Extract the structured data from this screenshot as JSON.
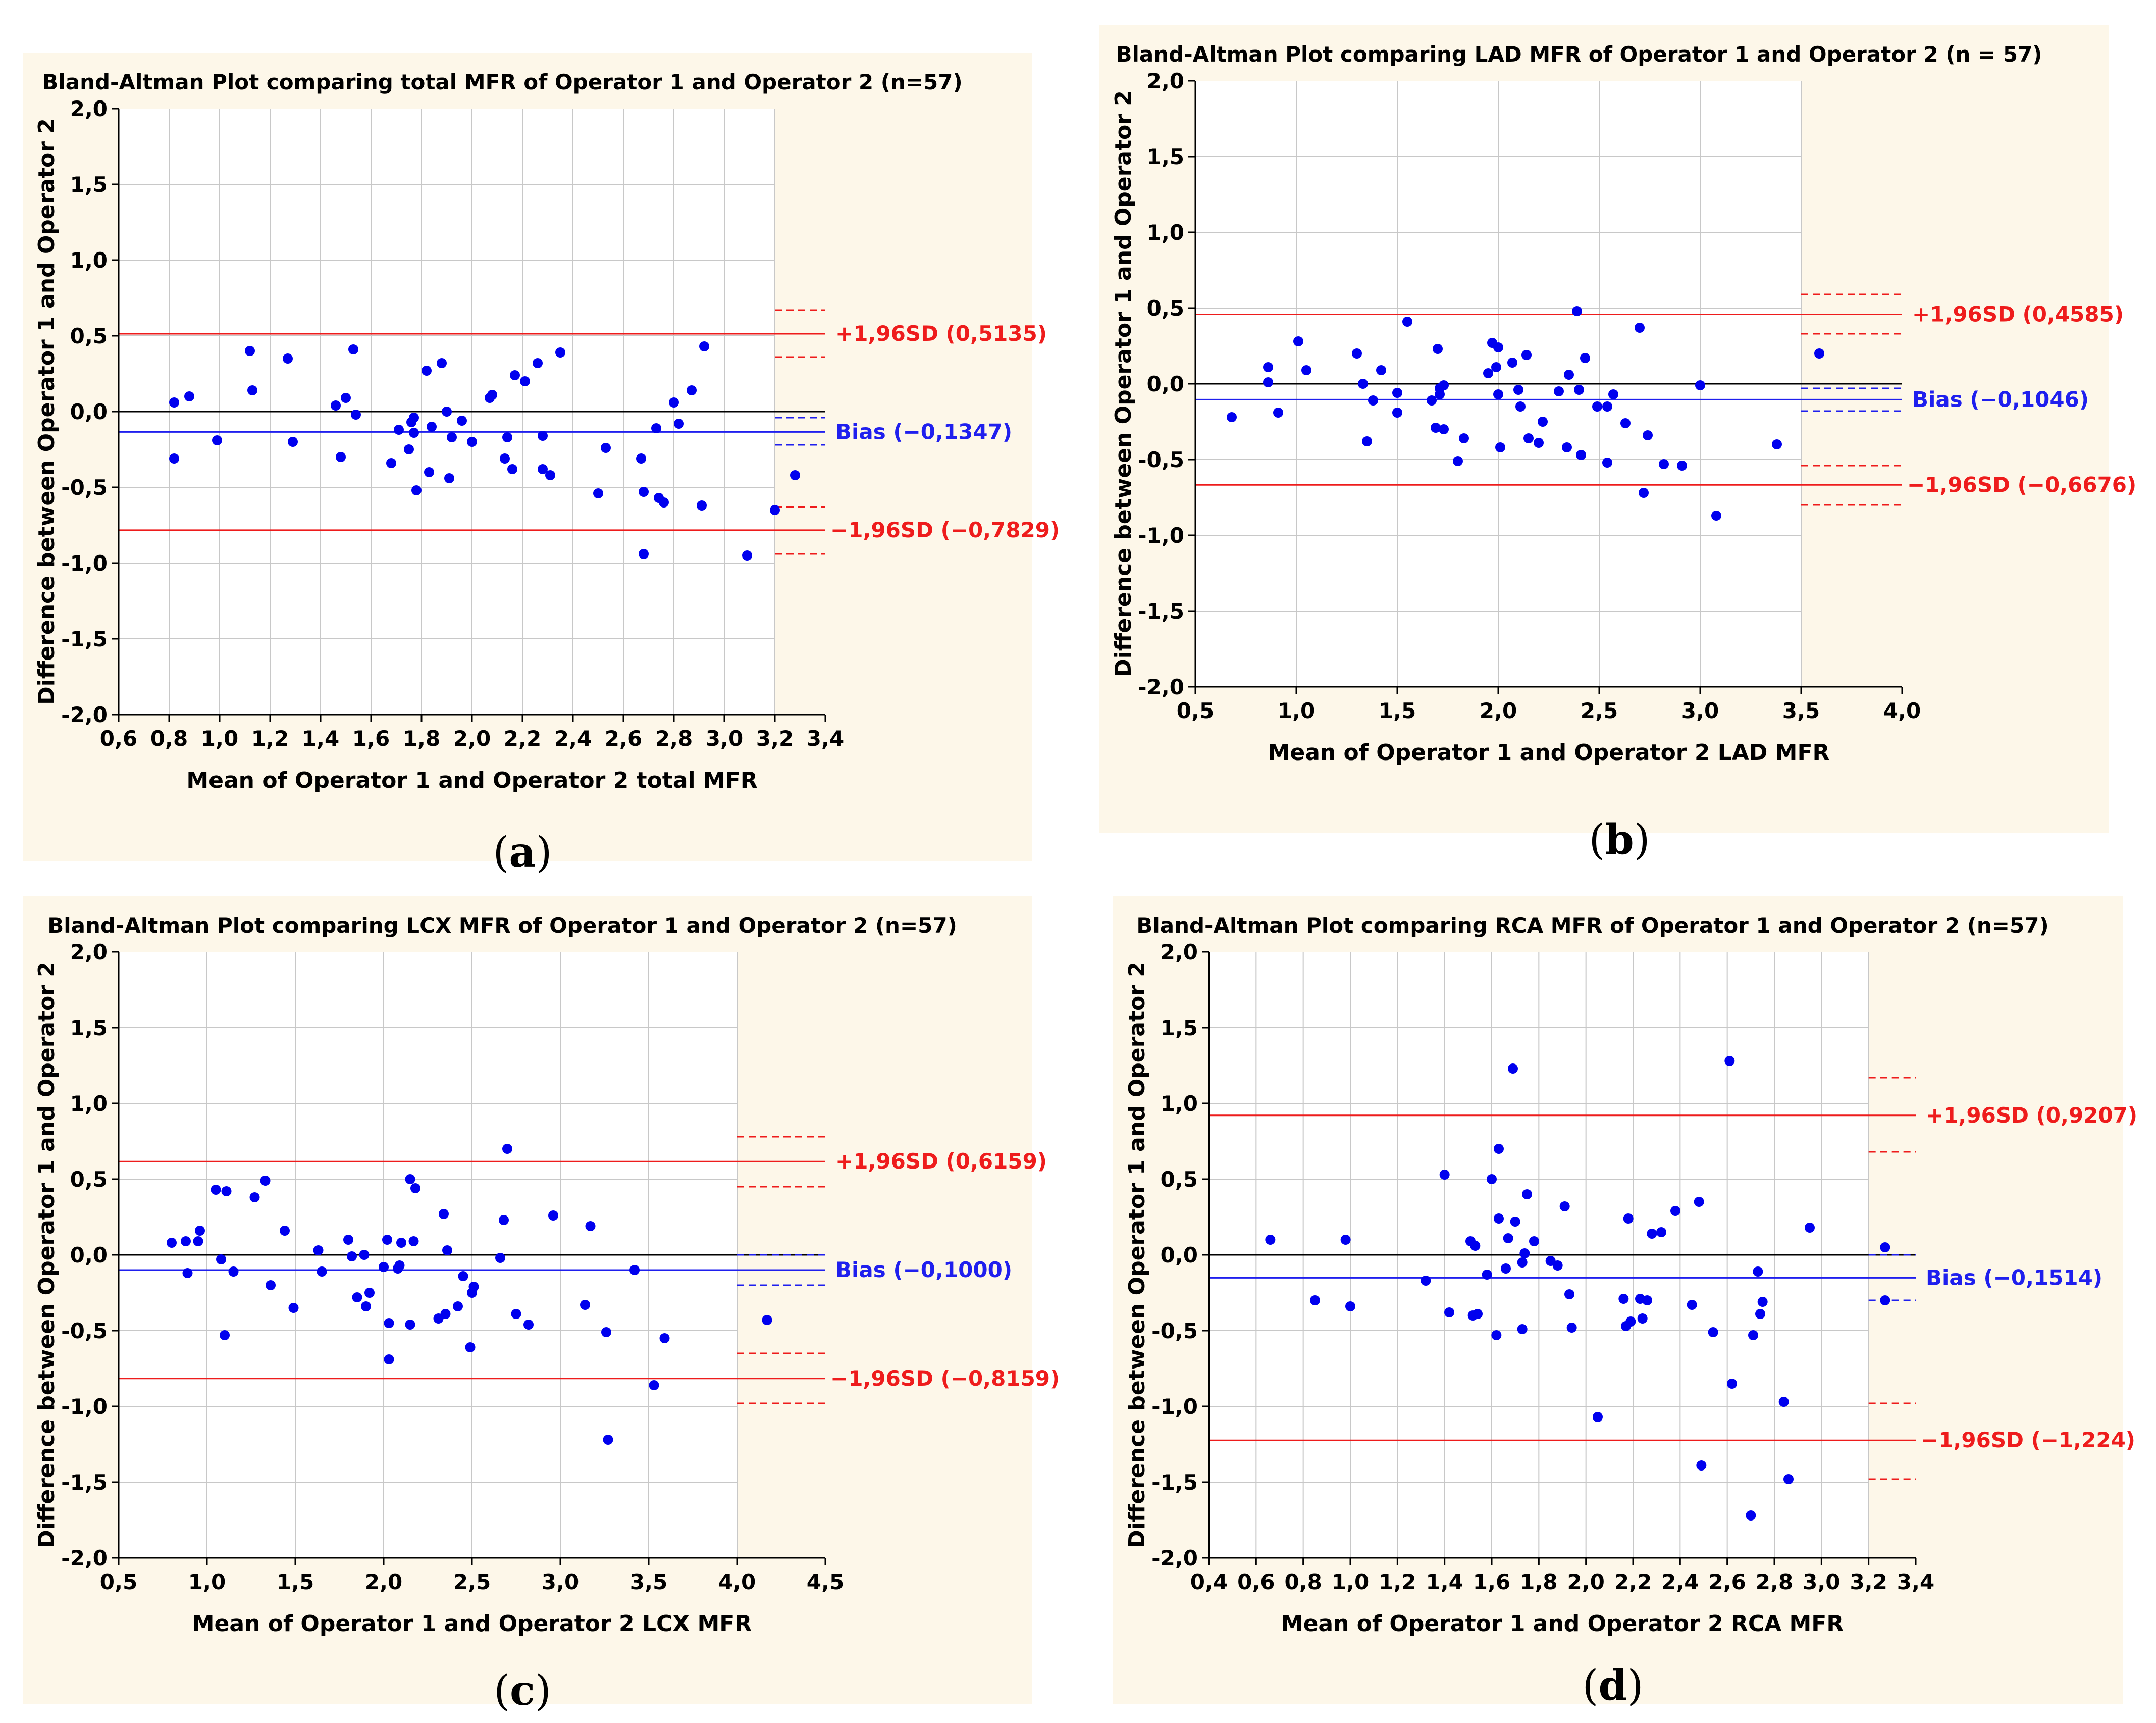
{
  "colors": {
    "panel_bg": "#fdf7e9",
    "plot_bg": "#ffffff",
    "grid": "#c8c8c8",
    "axis": "#000000",
    "point": "#0000ee",
    "upper_limit": "#ee1c1c",
    "lower_limit": "#ee1c1c",
    "bias_line": "#1f1fee",
    "zero_line": "#000000"
  },
  "captions": [
    {
      "open": "(",
      "letter": "a",
      "close": ")"
    },
    {
      "open": "(",
      "letter": "b",
      "close": ")"
    },
    {
      "open": "(",
      "letter": "c",
      "close": ")"
    },
    {
      "open": "(",
      "letter": "d",
      "close": ")"
    }
  ],
  "chart_data": [
    {
      "type": "scatter",
      "title": "Bland-Altman Plot comparing total MFR of Operator 1 and Operator 2 (n=57)",
      "xlabel": "Mean of Operator 1 and Operator 2 total MFR",
      "ylabel": "Difference between Operator 1 and Operator 2",
      "xlim": [
        0.6,
        3.4
      ],
      "ylim": [
        -2.0,
        2.0
      ],
      "xticks": [
        0.6,
        0.8,
        1.0,
        1.2,
        1.4,
        1.6,
        1.8,
        2.0,
        2.2,
        2.4,
        2.6,
        2.8,
        3.0,
        3.2,
        3.4
      ],
      "xtick_labels": [
        "0,6",
        "0,8",
        "1,0",
        "1,2",
        "1,4",
        "1,6",
        "1,8",
        "2,0",
        "2,2",
        "2,4",
        "2,6",
        "2,8",
        "3,0",
        "3,2",
        "3,4"
      ],
      "yticks": [
        2.0,
        1.5,
        1.0,
        0.5,
        0.0,
        -0.5,
        -1.0,
        -1.5,
        -2.0
      ],
      "ytick_labels": [
        "2,0",
        "1,5",
        "1,0",
        "0,5",
        "0,0",
        "-0,5",
        "-1,0",
        "-1,5",
        "-2,0"
      ],
      "grid": true,
      "bias": -0.1347,
      "upper_loa": 0.5135,
      "lower_loa": -0.7829,
      "ci_x_start": 3.2,
      "upper_ci": [
        0.36,
        0.67
      ],
      "bias_ci": [
        -0.22,
        -0.04
      ],
      "lower_ci": [
        -0.94,
        -0.63
      ],
      "upper_label": "+1,96SD (0,5135)",
      "bias_label": "Bias (−0,1347)",
      "lower_label": "−1,96SD (−0,7829)",
      "points": [
        [
          0.82,
          0.06
        ],
        [
          0.82,
          -0.31
        ],
        [
          0.88,
          0.1
        ],
        [
          0.99,
          -0.19
        ],
        [
          1.12,
          0.4
        ],
        [
          1.13,
          0.14
        ],
        [
          1.27,
          0.35
        ],
        [
          1.29,
          -0.2
        ],
        [
          1.46,
          0.04
        ],
        [
          1.48,
          -0.3
        ],
        [
          1.5,
          0.09
        ],
        [
          1.53,
          0.41
        ],
        [
          1.54,
          -0.02
        ],
        [
          1.68,
          -0.34
        ],
        [
          1.71,
          -0.12
        ],
        [
          1.75,
          -0.25
        ],
        [
          1.76,
          -0.07
        ],
        [
          1.77,
          -0.04
        ],
        [
          1.77,
          -0.14
        ],
        [
          1.78,
          -0.52
        ],
        [
          1.82,
          0.27
        ],
        [
          1.83,
          -0.4
        ],
        [
          1.84,
          -0.1
        ],
        [
          1.88,
          0.32
        ],
        [
          1.9,
          0.0
        ],
        [
          1.91,
          -0.44
        ],
        [
          1.92,
          -0.17
        ],
        [
          1.96,
          -0.06
        ],
        [
          2.0,
          -0.2
        ],
        [
          2.07,
          0.09
        ],
        [
          2.08,
          0.11
        ],
        [
          2.13,
          -0.31
        ],
        [
          2.14,
          -0.17
        ],
        [
          2.16,
          -0.38
        ],
        [
          2.17,
          0.24
        ],
        [
          2.21,
          0.2
        ],
        [
          2.26,
          0.32
        ],
        [
          2.28,
          -0.16
        ],
        [
          2.28,
          -0.38
        ],
        [
          2.31,
          -0.42
        ],
        [
          2.35,
          0.39
        ],
        [
          2.5,
          -0.54
        ],
        [
          2.53,
          -0.24
        ],
        [
          2.67,
          -0.31
        ],
        [
          2.68,
          -0.53
        ],
        [
          2.68,
          -0.94
        ],
        [
          2.73,
          -0.11
        ],
        [
          2.74,
          -0.57
        ],
        [
          2.76,
          -0.6
        ],
        [
          2.8,
          0.06
        ],
        [
          2.82,
          -0.08
        ],
        [
          2.87,
          0.14
        ],
        [
          2.91,
          -0.62
        ],
        [
          2.92,
          0.43
        ],
        [
          3.09,
          -0.95
        ],
        [
          3.2,
          -0.65
        ],
        [
          3.28,
          -0.42
        ]
      ]
    },
    {
      "type": "scatter",
      "title": "Bland-Altman Plot comparing LAD MFR of Operator 1 and Operator 2 (n = 57)",
      "xlabel": "Mean of Operator 1 and Operator 2 LAD MFR",
      "ylabel": "Difference between Operator 1 and Operator 2",
      "xlim": [
        0.5,
        4.0
      ],
      "ylim": [
        -2.0,
        2.0
      ],
      "xticks": [
        0.5,
        1.0,
        1.5,
        2.0,
        2.5,
        3.0,
        3.5,
        4.0
      ],
      "xtick_labels": [
        "0,5",
        "1,0",
        "1,5",
        "2,0",
        "2,5",
        "3,0",
        "3,5",
        "4,0"
      ],
      "yticks": [
        2.0,
        1.5,
        1.0,
        0.5,
        0.0,
        -0.5,
        -1.0,
        -1.5,
        -2.0
      ],
      "ytick_labels": [
        "2,0",
        "1,5",
        "1,0",
        "0,5",
        "0,0",
        "-0,5",
        "-1,0",
        "-1,5",
        "-2,0"
      ],
      "grid": true,
      "bias": -0.1046,
      "upper_loa": 0.4585,
      "lower_loa": -0.6676,
      "ci_x_start": 3.5,
      "upper_ci": [
        0.33,
        0.59
      ],
      "bias_ci": [
        -0.18,
        -0.03
      ],
      "lower_ci": [
        -0.8,
        -0.54
      ],
      "upper_label": "+1,96SD (0,4585)",
      "bias_label": "Bias (−0,1046)",
      "lower_label": "−1,96SD (−0,6676)",
      "points": [
        [
          0.68,
          -0.22
        ],
        [
          0.86,
          0.11
        ],
        [
          0.86,
          0.01
        ],
        [
          0.91,
          -0.19
        ],
        [
          1.01,
          0.28
        ],
        [
          1.05,
          0.09
        ],
        [
          1.3,
          0.2
        ],
        [
          1.33,
          0.0
        ],
        [
          1.35,
          -0.38
        ],
        [
          1.38,
          -0.11
        ],
        [
          1.42,
          0.09
        ],
        [
          1.5,
          -0.06
        ],
        [
          1.5,
          -0.19
        ],
        [
          1.55,
          0.41
        ],
        [
          1.67,
          -0.11
        ],
        [
          1.7,
          0.23
        ],
        [
          1.69,
          -0.29
        ],
        [
          1.71,
          -0.03
        ],
        [
          1.71,
          -0.07
        ],
        [
          1.73,
          -0.3
        ],
        [
          1.73,
          -0.01
        ],
        [
          1.8,
          -0.51
        ],
        [
          1.83,
          -0.36
        ],
        [
          1.95,
          0.07
        ],
        [
          1.97,
          0.27
        ],
        [
          1.99,
          0.11
        ],
        [
          2.0,
          0.24
        ],
        [
          2.0,
          -0.07
        ],
        [
          2.01,
          -0.42
        ],
        [
          2.07,
          0.14
        ],
        [
          2.1,
          -0.04
        ],
        [
          2.11,
          -0.15
        ],
        [
          2.14,
          0.19
        ],
        [
          2.15,
          -0.36
        ],
        [
          2.2,
          -0.39
        ],
        [
          2.22,
          -0.25
        ],
        [
          2.3,
          -0.05
        ],
        [
          2.34,
          -0.42
        ],
        [
          2.35,
          0.06
        ],
        [
          2.39,
          0.48
        ],
        [
          2.4,
          -0.04
        ],
        [
          2.41,
          -0.47
        ],
        [
          2.43,
          0.17
        ],
        [
          2.49,
          -0.15
        ],
        [
          2.54,
          -0.15
        ],
        [
          2.54,
          -0.52
        ],
        [
          2.57,
          -0.07
        ],
        [
          2.63,
          -0.26
        ],
        [
          2.7,
          0.37
        ],
        [
          2.72,
          -0.72
        ],
        [
          2.74,
          -0.34
        ],
        [
          2.82,
          -0.53
        ],
        [
          2.91,
          -0.54
        ],
        [
          3.0,
          -0.01
        ],
        [
          3.08,
          -0.87
        ],
        [
          3.38,
          -0.4
        ],
        [
          3.59,
          0.2
        ]
      ]
    },
    {
      "type": "scatter",
      "title": "Bland-Altman Plot comparing LCX MFR of Operator 1 and Operator 2 (n=57)",
      "xlabel": "Mean of Operator 1 and Operator 2 LCX MFR",
      "ylabel": "Difference between Operator 1 and Operator 2",
      "xlim": [
        0.5,
        4.5
      ],
      "ylim": [
        -2.0,
        2.0
      ],
      "xticks": [
        0.5,
        1.0,
        1.5,
        2.0,
        2.5,
        3.0,
        3.5,
        4.0,
        4.5
      ],
      "xtick_labels": [
        "0,5",
        "1,0",
        "1,5",
        "2,0",
        "2,5",
        "3,0",
        "3,5",
        "4,0",
        "4,5"
      ],
      "yticks": [
        2.0,
        1.5,
        1.0,
        0.5,
        0.0,
        -0.5,
        -1.0,
        -1.5,
        -2.0
      ],
      "ytick_labels": [
        "2,0",
        "1,5",
        "1,0",
        "0,5",
        "0,0",
        "-0,5",
        "-1,0",
        "-1,5",
        "-2,0"
      ],
      "grid": true,
      "bias": -0.1,
      "upper_loa": 0.6159,
      "lower_loa": -0.8159,
      "ci_x_start": 4.0,
      "upper_ci": [
        0.45,
        0.78
      ],
      "bias_ci": [
        -0.2,
        -0.0
      ],
      "lower_ci": [
        -0.98,
        -0.65
      ],
      "upper_label": "+1,96SD (0,6159)",
      "bias_label": "Bias (−0,1000)",
      "lower_label": "−1,96SD (−0,8159)",
      "points": [
        [
          0.8,
          0.08
        ],
        [
          0.88,
          0.09
        ],
        [
          0.89,
          -0.12
        ],
        [
          0.95,
          0.09
        ],
        [
          0.96,
          0.16
        ],
        [
          1.05,
          0.43
        ],
        [
          1.08,
          -0.03
        ],
        [
          1.1,
          -0.53
        ],
        [
          1.11,
          0.42
        ],
        [
          1.15,
          -0.11
        ],
        [
          1.27,
          0.38
        ],
        [
          1.33,
          0.49
        ],
        [
          1.36,
          -0.2
        ],
        [
          1.44,
          0.16
        ],
        [
          1.49,
          -0.35
        ],
        [
          1.63,
          0.03
        ],
        [
          1.65,
          -0.11
        ],
        [
          1.8,
          0.1
        ],
        [
          1.82,
          -0.01
        ],
        [
          1.85,
          -0.28
        ],
        [
          1.89,
          0.0
        ],
        [
          1.9,
          -0.34
        ],
        [
          1.92,
          -0.25
        ],
        [
          2.0,
          -0.08
        ],
        [
          2.02,
          0.1
        ],
        [
          2.03,
          -0.45
        ],
        [
          2.03,
          -0.69
        ],
        [
          2.08,
          -0.09
        ],
        [
          2.09,
          -0.07
        ],
        [
          2.1,
          0.08
        ],
        [
          2.15,
          -0.46
        ],
        [
          2.15,
          0.5
        ],
        [
          2.17,
          0.09
        ],
        [
          2.18,
          0.44
        ],
        [
          2.31,
          -0.42
        ],
        [
          2.34,
          0.27
        ],
        [
          2.35,
          -0.39
        ],
        [
          2.36,
          0.03
        ],
        [
          2.42,
          -0.34
        ],
        [
          2.45,
          -0.14
        ],
        [
          2.49,
          -0.61
        ],
        [
          2.5,
          -0.25
        ],
        [
          2.51,
          -0.21
        ],
        [
          2.66,
          -0.02
        ],
        [
          2.68,
          0.23
        ],
        [
          2.7,
          0.7
        ],
        [
          2.75,
          -0.39
        ],
        [
          2.82,
          -0.46
        ],
        [
          2.96,
          0.26
        ],
        [
          3.14,
          -0.33
        ],
        [
          3.17,
          0.19
        ],
        [
          3.26,
          -0.51
        ],
        [
          3.27,
          -1.22
        ],
        [
          3.42,
          -0.1
        ],
        [
          3.53,
          -0.86
        ],
        [
          3.59,
          -0.55
        ],
        [
          4.17,
          -0.43
        ]
      ]
    },
    {
      "type": "scatter",
      "title": "Bland-Altman Plot comparing RCA MFR of Operator 1 and Operator 2 (n=57)",
      "xlabel": "Mean of Operator 1 and Operator 2 RCA MFR",
      "ylabel": "Difference between Operator 1 and Operator 2",
      "xlim": [
        0.4,
        3.4
      ],
      "ylim": [
        -2.0,
        2.0
      ],
      "xticks": [
        0.4,
        0.6,
        0.8,
        1.0,
        1.2,
        1.4,
        1.6,
        1.8,
        2.0,
        2.2,
        2.4,
        2.6,
        2.8,
        3.0,
        3.2,
        3.4
      ],
      "xtick_labels": [
        "0,4",
        "0,6",
        "0,8",
        "1,0",
        "1,2",
        "1,4",
        "1,6",
        "1,8",
        "2,0",
        "2,2",
        "2,4",
        "2,6",
        "2,8",
        "3,0",
        "3,2",
        "3,4"
      ],
      "yticks": [
        2.0,
        1.5,
        1.0,
        0.5,
        0.0,
        -0.5,
        -1.0,
        -1.5,
        -2.0
      ],
      "ytick_labels": [
        "2,0",
        "1,5",
        "1,0",
        "0,5",
        "0,0",
        "-0,5",
        "-1,0",
        "-1,5",
        "-2,0"
      ],
      "grid": true,
      "bias": -0.1514,
      "upper_loa": 0.9207,
      "lower_loa": -1.224,
      "ci_x_start": 3.2,
      "upper_ci": [
        0.68,
        1.17
      ],
      "bias_ci": [
        -0.3,
        -0.0
      ],
      "lower_ci": [
        -1.48,
        -0.98
      ],
      "upper_label": "+1,96SD (0,9207)",
      "bias_label": "Bias (−0,1514)",
      "lower_label": "−1,96SD (−1,224)",
      "points": [
        [
          0.66,
          0.1
        ],
        [
          0.85,
          -0.3
        ],
        [
          0.98,
          0.1
        ],
        [
          1.0,
          -0.34
        ],
        [
          1.32,
          -0.17
        ],
        [
          1.4,
          0.53
        ],
        [
          1.42,
          -0.38
        ],
        [
          1.51,
          0.09
        ],
        [
          1.52,
          -0.4
        ],
        [
          1.53,
          0.06
        ],
        [
          1.54,
          -0.39
        ],
        [
          1.58,
          -0.13
        ],
        [
          1.6,
          0.5
        ],
        [
          1.62,
          -0.53
        ],
        [
          1.63,
          0.24
        ],
        [
          1.63,
          0.7
        ],
        [
          1.66,
          -0.09
        ],
        [
          1.67,
          0.11
        ],
        [
          1.69,
          1.23
        ],
        [
          1.7,
          0.22
        ],
        [
          1.73,
          -0.49
        ],
        [
          1.73,
          -0.05
        ],
        [
          1.74,
          0.01
        ],
        [
          1.75,
          0.4
        ],
        [
          1.78,
          0.09
        ],
        [
          1.85,
          -0.04
        ],
        [
          1.88,
          -0.07
        ],
        [
          1.91,
          0.32
        ],
        [
          1.93,
          -0.26
        ],
        [
          1.94,
          -0.48
        ],
        [
          2.05,
          -1.07
        ],
        [
          2.16,
          -0.29
        ],
        [
          2.17,
          -0.47
        ],
        [
          2.18,
          0.24
        ],
        [
          2.19,
          -0.44
        ],
        [
          2.23,
          -0.29
        ],
        [
          2.24,
          -0.42
        ],
        [
          2.26,
          -0.3
        ],
        [
          2.28,
          0.14
        ],
        [
          2.32,
          0.15
        ],
        [
          2.38,
          0.29
        ],
        [
          2.45,
          -0.33
        ],
        [
          2.48,
          0.35
        ],
        [
          2.49,
          -1.39
        ],
        [
          2.54,
          -0.51
        ],
        [
          2.61,
          1.28
        ],
        [
          2.62,
          -0.85
        ],
        [
          2.7,
          -1.72
        ],
        [
          2.71,
          -0.53
        ],
        [
          2.73,
          -0.11
        ],
        [
          2.74,
          -0.39
        ],
        [
          2.75,
          -0.31
        ],
        [
          2.84,
          -0.97
        ],
        [
          2.86,
          -1.48
        ],
        [
          2.95,
          0.18
        ],
        [
          3.27,
          0.05
        ],
        [
          3.27,
          -0.3
        ]
      ]
    }
  ]
}
